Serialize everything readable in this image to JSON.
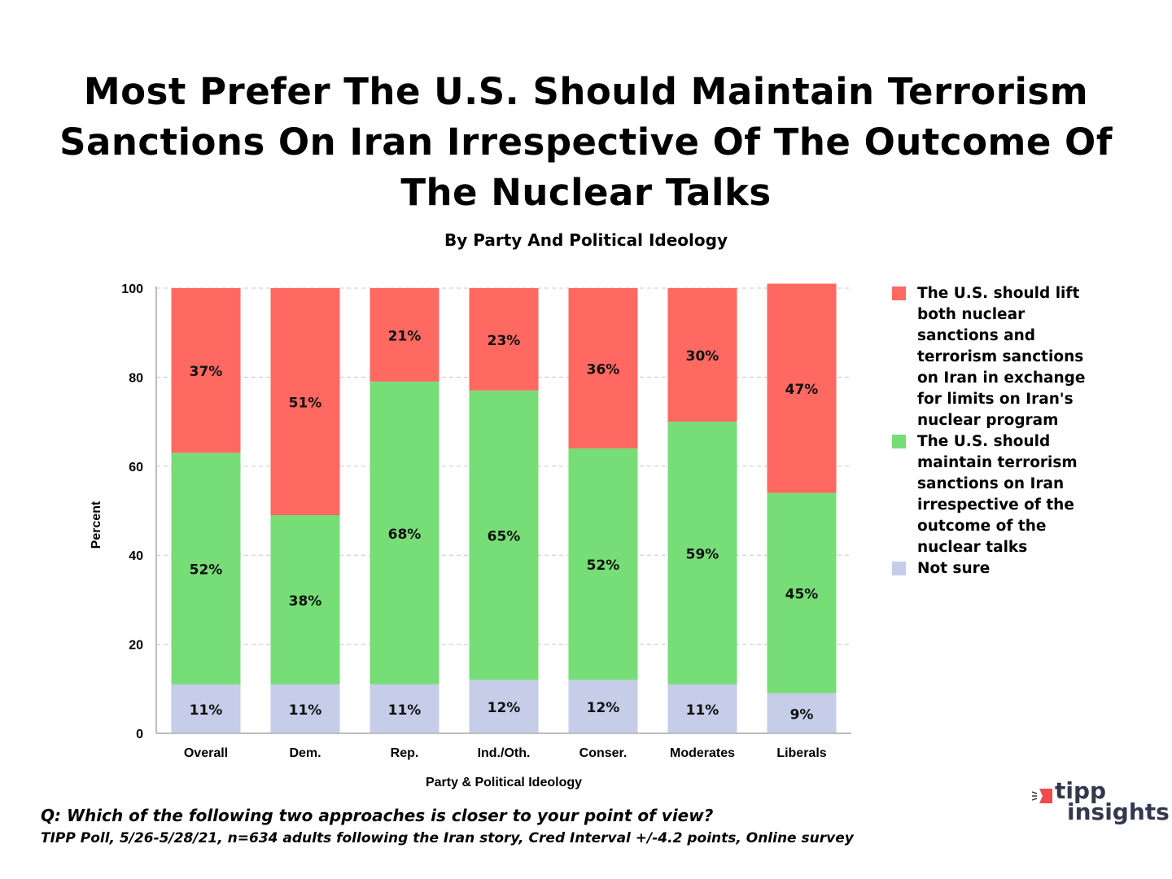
{
  "chart_data": {
    "type": "bar",
    "stacked": true,
    "title": "Most Prefer The U.S. Should Maintain Terrorism Sanctions On Iran Irrespective Of The Outcome Of The Nuclear Talks",
    "title_lines": [
      "Most Prefer The U.S. Should Maintain Terrorism",
      "Sanctions On Iran Irrespective Of The Outcome Of",
      "The Nuclear Talks"
    ],
    "subtitle": "By Party And Political Ideology",
    "xlabel": "Party & Political Ideology",
    "ylabel": "Percent",
    "ylim": [
      0,
      100
    ],
    "yticks": [
      0,
      20,
      40,
      60,
      80,
      100
    ],
    "grid": true,
    "legend_position": "right",
    "categories": [
      "Overall",
      "Dem.",
      "Rep.",
      "Ind./Oth.",
      "Conser.",
      "Moderates",
      "Liberals"
    ],
    "series": [
      {
        "name": "Not sure",
        "color": "#c5cde9",
        "values": [
          11,
          11,
          11,
          12,
          12,
          11,
          9
        ]
      },
      {
        "name": "The U.S. should maintain terrorism sanctions on Iran irrespective of the outcome of the nuclear talks",
        "color": "#77dd77",
        "values": [
          52,
          38,
          68,
          65,
          52,
          59,
          45
        ]
      },
      {
        "name": "The U.S. should lift both nuclear sanctions and terrorism sanctions on Iran in exchange for limits on Iran's nuclear program",
        "color": "#ff6961",
        "values": [
          37,
          51,
          21,
          23,
          36,
          30,
          47
        ]
      }
    ],
    "value_suffix": "%"
  },
  "legend": {
    "items": [
      {
        "label": "The U.S. should lift both nuclear sanctions and terrorism sanctions on Iran in exchange for limits on Iran's nuclear program",
        "color": "#ff6961"
      },
      {
        "label": "The U.S. should maintain terrorism sanctions on Iran irrespective of the outcome of the nuclear talks",
        "color": "#77dd77"
      },
      {
        "label": "Not sure",
        "color": "#c5cde9"
      }
    ]
  },
  "footer": {
    "question": "Q:  Which of the following two approaches is closer to your point of view?",
    "source": "TIPP Poll, 5/26-5/28/21, n=634 adults following the Iran story, Cred Interval +/-4.2 points, Online survey"
  },
  "logo": {
    "line1": "tipp",
    "line2": "insights",
    "mark_color": "#ef4b4b",
    "text_color": "#33384f"
  }
}
